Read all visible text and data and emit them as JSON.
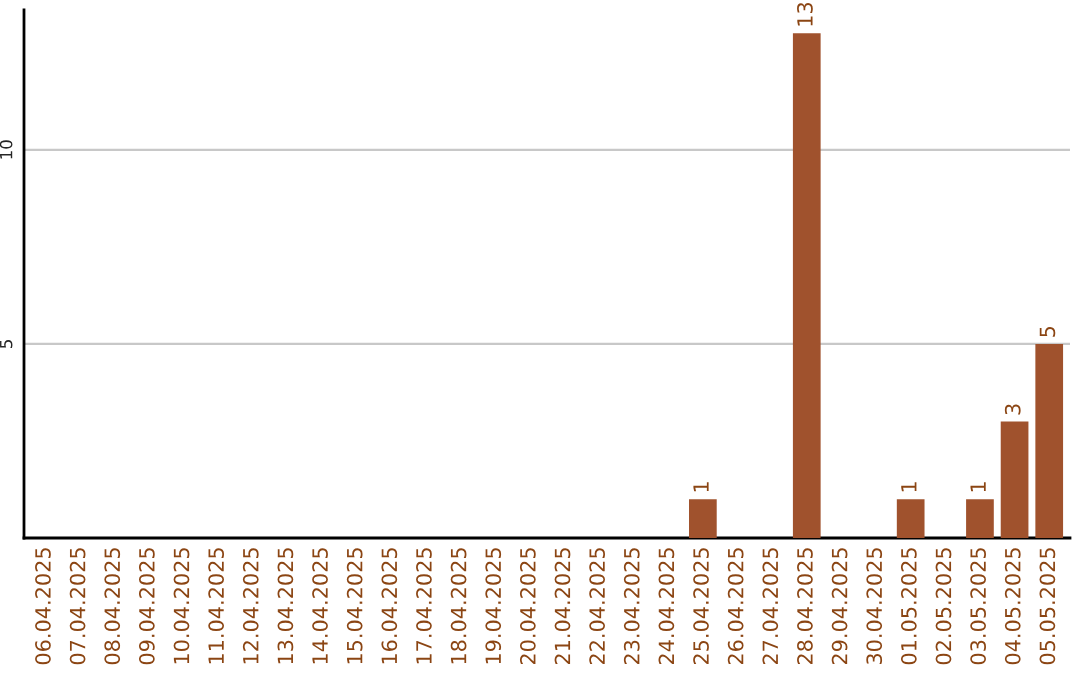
{
  "chart_data": {
    "type": "bar",
    "categories": [
      "06.04.2025",
      "07.04.2025",
      "08.04.2025",
      "09.04.2025",
      "10.04.2025",
      "11.04.2025",
      "12.04.2025",
      "13.04.2025",
      "14.04.2025",
      "15.04.2025",
      "16.04.2025",
      "17.04.2025",
      "18.04.2025",
      "19.04.2025",
      "20.04.2025",
      "21.04.2025",
      "22.04.2025",
      "23.04.2025",
      "24.04.2025",
      "25.04.2025",
      "26.04.2025",
      "27.04.2025",
      "28.04.2025",
      "29.04.2025",
      "30.04.2025",
      "01.05.2025",
      "02.05.2025",
      "03.05.2025",
      "04.05.2025",
      "05.05.2025"
    ],
    "values": [
      0,
      0,
      0,
      0,
      0,
      0,
      0,
      0,
      0,
      0,
      0,
      0,
      0,
      0,
      0,
      0,
      0,
      0,
      0,
      1,
      0,
      0,
      13,
      0,
      0,
      1,
      0,
      1,
      3,
      5
    ],
    "value_labels": [
      null,
      null,
      null,
      null,
      null,
      null,
      null,
      null,
      null,
      null,
      null,
      null,
      null,
      null,
      null,
      null,
      null,
      null,
      null,
      "1",
      null,
      null,
      "13",
      null,
      null,
      "1",
      null,
      "1",
      "3",
      "5"
    ],
    "color": "#a0522d",
    "ylim": [
      0,
      13.6
    ],
    "yticks": [
      5,
      10
    ],
    "grid": "y"
  }
}
